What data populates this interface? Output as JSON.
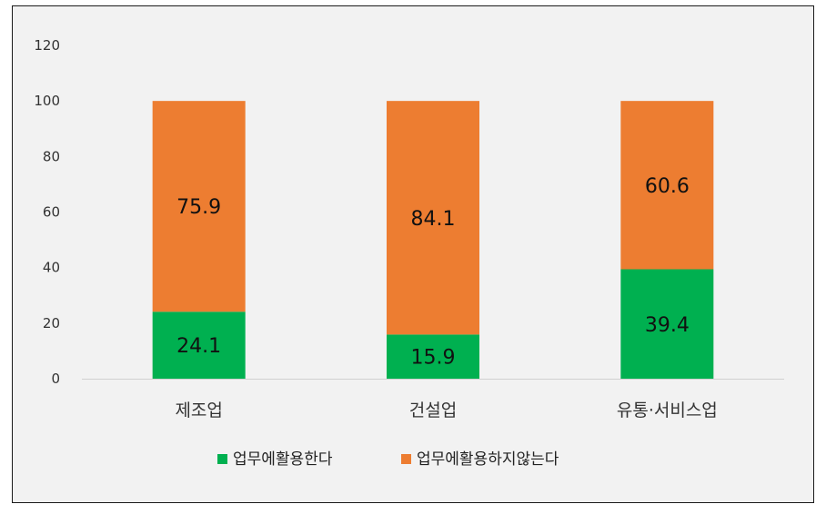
{
  "chart_data": {
    "type": "bar",
    "stacked": true,
    "categories": [
      "제조업",
      "건설업",
      "유통·서비스업"
    ],
    "series": [
      {
        "name": "업무에활용한다",
        "values": [
          24.1,
          15.9,
          39.4
        ],
        "color": "#00b050"
      },
      {
        "name": "업무에활용하지않는다",
        "values": [
          75.9,
          84.1,
          60.6
        ],
        "color": "#ed7d31"
      }
    ],
    "ylim": [
      0,
      120
    ],
    "yticks": [
      0,
      20,
      40,
      60,
      80,
      100,
      120
    ],
    "grid": false,
    "legend": "bottom",
    "title": "",
    "xlabel": "",
    "ylabel": ""
  }
}
